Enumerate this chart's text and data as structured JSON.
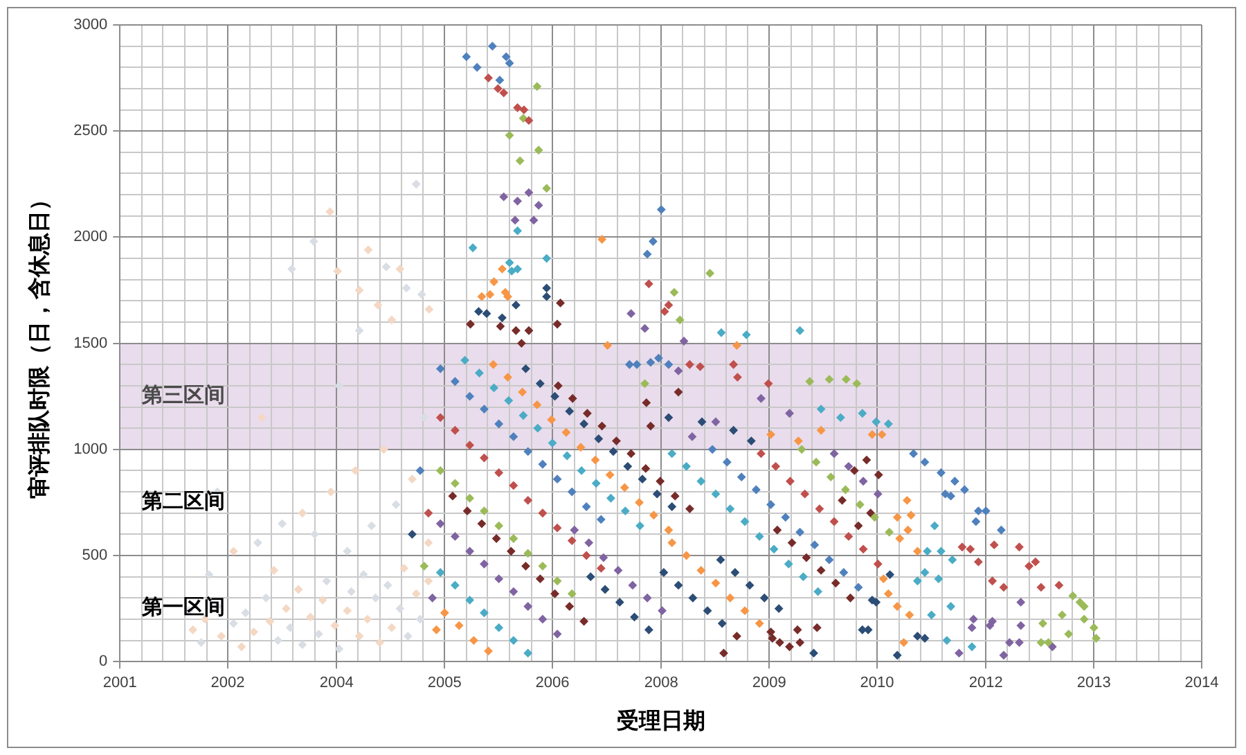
{
  "chart_data": {
    "type": "scatter",
    "xlabel": "受理日期",
    "ylabel": "审评排队时限（日，含休息日）",
    "marker": "diamond",
    "grid": true,
    "xlim": [
      "2001-07-03",
      "2014-10-31"
    ],
    "xticks": [
      {
        "value": "2001-07-03",
        "label": "2001"
      },
      {
        "value": "2001-10-09",
        "label": null
      },
      {
        "value": "2002-01-12",
        "label": null
      },
      {
        "value": "2002-04-21",
        "label": null
      },
      {
        "value": "2002-07-28",
        "label": null
      },
      {
        "value": "2002-10-31",
        "label": "2002"
      },
      {
        "value": "2003-02-07",
        "label": null
      },
      {
        "value": "2003-05-16",
        "label": null
      },
      {
        "value": "2003-08-19",
        "label": null
      },
      {
        "value": "2003-11-26",
        "label": null
      },
      {
        "value": "2004-03-04",
        "label": "2004"
      },
      {
        "value": "2004-06-07",
        "label": null
      },
      {
        "value": "2004-09-14",
        "label": null
      },
      {
        "value": "2004-12-21",
        "label": null
      },
      {
        "value": "2005-03-26",
        "label": null
      },
      {
        "value": "2005-07-03",
        "label": "2005"
      },
      {
        "value": "2005-10-09",
        "label": null
      },
      {
        "value": "2006-01-12",
        "label": null
      },
      {
        "value": "2006-04-21",
        "label": null
      },
      {
        "value": "2006-07-28",
        "label": null
      },
      {
        "value": "2006-10-31",
        "label": "2006"
      },
      {
        "value": "2007-02-07",
        "label": null
      },
      {
        "value": "2007-05-16",
        "label": null
      },
      {
        "value": "2007-08-19",
        "label": null
      },
      {
        "value": "2007-11-26",
        "label": null
      },
      {
        "value": "2008-03-04",
        "label": "2008"
      },
      {
        "value": "2008-06-07",
        "label": null
      },
      {
        "value": "2008-09-14",
        "label": null
      },
      {
        "value": "2008-12-21",
        "label": null
      },
      {
        "value": "2009-03-26",
        "label": null
      },
      {
        "value": "2009-07-03",
        "label": "2009"
      },
      {
        "value": "2009-10-09",
        "label": null
      },
      {
        "value": "2010-01-12",
        "label": null
      },
      {
        "value": "2010-04-21",
        "label": null
      },
      {
        "value": "2010-07-28",
        "label": null
      },
      {
        "value": "2010-10-31",
        "label": "2010"
      },
      {
        "value": "2011-02-07",
        "label": null
      },
      {
        "value": "2011-05-16",
        "label": null
      },
      {
        "value": "2011-08-19",
        "label": null
      },
      {
        "value": "2011-11-26",
        "label": null
      },
      {
        "value": "2012-03-04",
        "label": "2012"
      },
      {
        "value": "2012-06-07",
        "label": null
      },
      {
        "value": "2012-09-14",
        "label": null
      },
      {
        "value": "2012-12-21",
        "label": null
      },
      {
        "value": "2013-03-26",
        "label": null
      },
      {
        "value": "2013-07-03",
        "label": "2013"
      },
      {
        "value": "2013-10-09",
        "label": null
      },
      {
        "value": "2014-01-12",
        "label": null
      },
      {
        "value": "2014-04-21",
        "label": null
      },
      {
        "value": "2014-07-28",
        "label": null
      },
      {
        "value": "2014-10-31",
        "label": "2014"
      }
    ],
    "ylim": [
      0,
      3000
    ],
    "yticks": [
      0,
      {
        "value": 100,
        "label": null
      },
      {
        "value": 200,
        "label": null
      },
      {
        "value": 300,
        "label": null
      },
      {
        "value": 400,
        "label": null
      },
      500,
      {
        "value": 600,
        "label": null
      },
      {
        "value": 700,
        "label": null
      },
      {
        "value": 800,
        "label": null
      },
      {
        "value": 900,
        "label": null
      },
      1000,
      {
        "value": 1100,
        "label": null
      },
      {
        "value": 1200,
        "label": null
      },
      {
        "value": 1300,
        "label": null
      },
      {
        "value": 1400,
        "label": null
      },
      1500,
      {
        "value": 1600,
        "label": null
      },
      {
        "value": 1700,
        "label": null
      },
      {
        "value": 1800,
        "label": null
      },
      {
        "value": 1900,
        "label": null
      },
      2000,
      {
        "value": 2100,
        "label": null
      },
      {
        "value": 2200,
        "label": null
      },
      {
        "value": 2300,
        "label": null
      },
      {
        "value": 2400,
        "label": null
      },
      2500,
      {
        "value": 2600,
        "label": null
      },
      {
        "value": 2700,
        "label": null
      },
      {
        "value": 2800,
        "label": null
      },
      {
        "value": 2900,
        "label": null
      },
      3000
    ],
    "bands": [
      {
        "axis": "y",
        "from": 1000,
        "to": 1500,
        "label": "第三区间",
        "color": "#e9dcec"
      }
    ],
    "annotations": [
      "第二区间",
      "第一区间"
    ],
    "series": [
      {
        "color": "#d9dee5",
        "x": [
          "2002-05-09",
          "2002-07-03",
          "2002-09-14",
          "2002-11-26",
          "2003-01-19",
          "2003-04-21",
          "2003-06-14",
          "2003-08-08",
          "2003-10-02",
          "2003-12-14",
          "2004-01-19",
          "2004-03-15",
          "2004-05-09",
          "2004-07-03",
          "2004-08-26",
          "2004-10-20",
          "2004-12-14",
          "2005-01-19",
          "2005-03-15",
          "2002-08-08",
          "2003-03-15",
          "2003-07-03",
          "2003-11-26",
          "2004-04-21",
          "2004-08-08",
          "2004-11-26",
          "2005-04-02",
          "2002-09-14",
          "2004-03-15",
          "2003-11-22",
          "2003-08-15",
          "2004-10-13",
          "2005-02-25",
          "2005-01-12",
          "2004-06-14",
          "2005-03-22"
        ],
        "values": [
          240,
          90,
          260,
          180,
          230,
          300,
          100,
          160,
          80,
          130,
          380,
          60,
          330,
          410,
          300,
          360,
          250,
          120,
          200,
          410,
          560,
          650,
          600,
          520,
          640,
          740,
          1150,
          800,
          1300,
          1980,
          1850,
          1860,
          2250,
          1760,
          1560,
          1730
        ]
      },
      {
        "color": "#f4d8c4",
        "x": [
          "2002-05-27",
          "2002-07-21",
          "2002-10-02",
          "2003-01-01",
          "2003-02-25",
          "2003-05-09",
          "2003-07-21",
          "2003-09-14",
          "2003-11-07",
          "2004-01-01",
          "2004-02-25",
          "2004-04-21",
          "2004-06-14",
          "2004-07-21",
          "2004-09-14",
          "2004-11-07",
          "2005-01-01",
          "2005-02-25",
          "2005-04-21",
          "2002-11-26",
          "2003-05-27",
          "2003-10-02",
          "2004-02-07",
          "2004-05-27",
          "2004-10-02",
          "2005-02-07",
          "2005-04-21",
          "2003-04-02",
          "2004-02-03",
          "2004-03-08",
          "2004-07-24",
          "2004-12-14",
          "2004-06-14",
          "2004-09-06",
          "2004-11-07",
          "2005-04-24"
        ],
        "values": [
          150,
          200,
          120,
          70,
          140,
          190,
          250,
          340,
          210,
          290,
          170,
          240,
          120,
          200,
          90,
          160,
          440,
          320,
          380,
          520,
          430,
          700,
          800,
          900,
          1000,
          860,
          560,
          1150,
          2120,
          1840,
          1940,
          1850,
          1750,
          1680,
          1610,
          1660
        ]
      },
      {
        "color": "#4f81bd",
        "x": [
          "2005-06-14",
          "2005-08-19",
          "2005-10-24",
          "2005-12-28",
          "2006-03-04",
          "2006-05-09",
          "2006-07-13",
          "2006-09-17",
          "2006-11-22",
          "2007-01-27",
          "2007-04-02",
          "2007-06-07",
          "2008-10-20",
          "2008-12-25",
          "2009-02-28",
          "2009-05-05",
          "2009-07-10",
          "2009-09-14",
          "2009-11-18",
          "2010-01-23",
          "2010-03-30",
          "2010-06-03",
          "2010-08-08",
          "2005-10-09",
          "2005-11-26",
          "2006-02-03",
          "2006-04-06",
          "2006-04-21",
          "2006-03-08",
          "2008-03-04",
          "2008-01-27",
          "2008-01-01",
          "2007-10-13",
          "2007-11-15",
          "2008-01-16",
          "2008-02-21",
          "2008-04-06",
          "2011-04-13",
          "2011-06-03",
          "2011-08-15",
          "2011-10-16",
          "2011-11-29",
          "2011-09-03",
          "2011-09-28",
          "2012-01-30",
          "2012-03-04",
          "2012-01-19",
          "2012-05-12",
          "2005-03-15"
        ],
        "values": [
          1380,
          1320,
          1250,
          1190,
          1120,
          1060,
          990,
          930,
          860,
          800,
          730,
          670,
          1000,
          940,
          870,
          810,
          740,
          680,
          610,
          550,
          480,
          420,
          350,
          2850,
          2800,
          2900,
          2850,
          2820,
          2740,
          2130,
          1980,
          1920,
          1400,
          1400,
          1410,
          1430,
          1400,
          980,
          940,
          890,
          850,
          810,
          790,
          780,
          710,
          710,
          660,
          620,
          900
        ]
      },
      {
        "color": "#c0504d",
        "x": [
          "2005-06-14",
          "2005-08-19",
          "2005-10-24",
          "2005-12-28",
          "2006-03-04",
          "2006-05-09",
          "2006-07-13",
          "2006-09-17",
          "2006-11-22",
          "2007-01-27",
          "2007-04-02",
          "2007-06-07",
          "2009-05-27",
          "2009-08-01",
          "2009-10-05",
          "2009-12-10",
          "2010-02-14",
          "2010-04-21",
          "2010-06-25",
          "2010-08-30",
          "2010-11-04",
          "2006-01-16",
          "2006-02-28",
          "2006-03-26",
          "2006-05-27",
          "2006-06-25",
          "2006-07-17",
          "2008-01-08",
          "2008-04-06",
          "2008-03-19",
          "2008-07-10",
          "2008-08-26",
          "2009-01-23",
          "2009-02-10",
          "2009-06-29",
          "2011-11-18",
          "2011-12-25",
          "2012-04-10",
          "2012-08-01",
          "2012-10-13",
          "2012-01-30",
          "2012-04-02",
          "2012-05-23",
          "2012-09-14",
          "2012-11-07",
          "2013-01-27",
          "2005-04-21"
        ],
        "values": [
          1150,
          1090,
          1020,
          960,
          890,
          830,
          760,
          700,
          630,
          570,
          500,
          440,
          980,
          920,
          850,
          790,
          720,
          660,
          590,
          530,
          460,
          2750,
          2700,
          2680,
          2610,
          2600,
          2550,
          1780,
          1680,
          1650,
          1400,
          1390,
          1400,
          1340,
          1310,
          540,
          530,
          550,
          540,
          470,
          470,
          380,
          350,
          450,
          350,
          360,
          700
        ]
      },
      {
        "color": "#9bbb59",
        "x": [
          "2005-06-14",
          "2005-08-19",
          "2005-10-24",
          "2005-12-28",
          "2006-03-04",
          "2006-05-09",
          "2006-07-13",
          "2006-09-17",
          "2006-11-22",
          "2007-01-27",
          "2009-11-26",
          "2010-01-30",
          "2010-04-06",
          "2010-06-11",
          "2010-08-15",
          "2010-10-20",
          "2010-12-25",
          "2006-06-22",
          "2006-08-23",
          "2006-04-21",
          "2006-08-30",
          "2006-06-07",
          "2006-10-05",
          "2008-05-27",
          "2008-10-09",
          "2008-05-01",
          "2010-01-01",
          "2010-03-30",
          "2010-06-14",
          "2010-08-01",
          "2007-12-21",
          "2013-03-30",
          "2013-05-01",
          "2013-05-20",
          "2013-07-03",
          "2013-07-13",
          "2013-05-20",
          "2013-03-11",
          "2013-02-10",
          "2012-11-15",
          "2012-11-07",
          "2012-12-10",
          "2005-04-02"
        ],
        "values": [
          900,
          840,
          770,
          710,
          640,
          580,
          510,
          450,
          380,
          320,
          1000,
          940,
          870,
          810,
          740,
          680,
          610,
          2560,
          2710,
          2480,
          2410,
          2360,
          2230,
          1610,
          1830,
          1740,
          1320,
          1330,
          1330,
          1310,
          1310,
          310,
          280,
          260,
          160,
          110,
          200,
          130,
          220,
          180,
          90,
          90,
          450
        ]
      },
      {
        "color": "#8064a2",
        "x": [
          "2005-06-14",
          "2005-08-19",
          "2005-10-24",
          "2005-12-28",
          "2006-03-04",
          "2006-05-09",
          "2006-07-13",
          "2006-09-17",
          "2006-11-22",
          "2007-02-07",
          "2007-04-13",
          "2007-06-18",
          "2007-08-23",
          "2007-10-27",
          "2008-01-01",
          "2008-03-08",
          "2010-04-21",
          "2010-06-25",
          "2010-08-30",
          "2010-11-04",
          "2006-03-26",
          "2006-05-27",
          "2006-07-17",
          "2006-08-30",
          "2006-05-16",
          "2006-08-08",
          "2008-06-14",
          "2007-10-20",
          "2007-12-21",
          "2008-05-20",
          "2008-07-21",
          "2008-11-04",
          "2009-05-27",
          "2009-10-02",
          "2012-12-28",
          "2012-08-08",
          "2012-08-08",
          "2012-08-01",
          "2012-05-23",
          "2012-06-18",
          "2012-03-22",
          "2012-04-02",
          "2012-01-08",
          "2012-01-01",
          "2011-11-04",
          "2005-05-09"
        ],
        "values": [
          650,
          590,
          520,
          460,
          390,
          330,
          260,
          200,
          130,
          620,
          560,
          490,
          430,
          360,
          300,
          240,
          980,
          920,
          850,
          790,
          2190,
          2170,
          2210,
          2150,
          2080,
          2080,
          1510,
          1640,
          1570,
          1370,
          1060,
          1130,
          1240,
          1170,
          70,
          280,
          170,
          90,
          30,
          90,
          170,
          190,
          200,
          160,
          40,
          300
        ]
      },
      {
        "color": "#4bacc6",
        "x": [
          "2005-06-14",
          "2005-08-19",
          "2005-10-24",
          "2005-12-28",
          "2006-03-04",
          "2006-05-09",
          "2006-07-13",
          "2005-10-02",
          "2005-12-06",
          "2006-02-10",
          "2006-04-17",
          "2006-06-22",
          "2006-08-26",
          "2006-10-31",
          "2007-01-05",
          "2007-03-11",
          "2007-05-16",
          "2007-07-21",
          "2007-09-24",
          "2007-11-29",
          "2008-04-21",
          "2008-06-25",
          "2008-08-30",
          "2008-11-04",
          "2009-01-08",
          "2009-03-15",
          "2009-05-20",
          "2009-07-24",
          "2009-09-28",
          "2009-12-03",
          "2010-02-07",
          "2006-05-27",
          "2005-11-07",
          "2006-04-21",
          "2006-05-01",
          "2006-05-27",
          "2006-10-05",
          "2008-11-29",
          "2009-03-22",
          "2009-11-18",
          "2010-02-21",
          "2010-05-20",
          "2010-08-26",
          "2010-10-27",
          "2010-12-21",
          "2011-09-10",
          "2012-01-01",
          "2011-09-28",
          "2011-07-03",
          "2011-05-01",
          "2011-06-03",
          "2011-08-04",
          "2011-06-14",
          "2011-07-17",
          "2011-08-15",
          "2011-10-05"
        ],
        "values": [
          420,
          360,
          290,
          230,
          160,
          100,
          40,
          1420,
          1360,
          1290,
          1230,
          1160,
          1100,
          1030,
          970,
          900,
          840,
          770,
          710,
          640,
          980,
          920,
          850,
          790,
          720,
          660,
          590,
          530,
          460,
          400,
          330,
          2030,
          1950,
          1880,
          1840,
          1850,
          1900,
          1550,
          1540,
          1560,
          1190,
          1150,
          1170,
          1130,
          1120,
          100,
          70,
          260,
          220,
          380,
          420,
          390,
          520,
          640,
          520,
          480
        ]
      },
      {
        "color": "#f79646",
        "x": [
          "2005-07-03",
          "2005-09-06",
          "2005-11-11",
          "2006-01-16",
          "2006-02-07",
          "2006-04-13",
          "2006-06-18",
          "2006-08-23",
          "2006-10-27",
          "2007-01-01",
          "2007-03-08",
          "2007-05-12",
          "2007-07-17",
          "2007-09-21",
          "2007-11-26",
          "2008-01-30",
          "2008-04-06",
          "2008-04-21",
          "2008-06-25",
          "2008-08-30",
          "2008-11-04",
          "2009-01-08",
          "2009-03-15",
          "2009-05-20",
          "2006-02-10",
          "2006-04-02",
          "2006-03-19",
          "2005-12-17",
          "2006-01-23",
          "2006-04-13",
          "2009-02-07",
          "2007-06-11",
          "2007-07-06",
          "2010-10-09",
          "2010-11-22",
          "2010-02-21",
          "2009-11-11",
          "2009-07-10",
          "2011-05-01",
          "2011-02-10",
          "2011-03-19",
          "2011-04-02",
          "2011-03-15",
          "2011-01-30",
          "2010-11-29",
          "2010-12-21",
          "2011-01-30",
          "2011-03-26",
          "2011-02-28",
          "2005-05-27"
        ],
        "values": [
          230,
          170,
          100,
          50,
          1400,
          1340,
          1270,
          1210,
          1140,
          1080,
          1010,
          950,
          880,
          820,
          750,
          690,
          620,
          560,
          500,
          430,
          370,
          300,
          240,
          180,
          1790,
          1740,
          1850,
          1720,
          1730,
          1720,
          1490,
          1990,
          1490,
          1070,
          1070,
          1090,
          1040,
          1070,
          520,
          580,
          620,
          690,
          760,
          680,
          390,
          320,
          260,
          220,
          90,
          150
        ]
      },
      {
        "color": "#2c4d75",
        "x": [
          "2006-07-03",
          "2006-09-06",
          "2006-11-11",
          "2007-01-16",
          "2007-03-22",
          "2007-05-27",
          "2007-08-01",
          "2007-10-05",
          "2007-12-10",
          "2008-02-14",
          "2008-04-21",
          "2007-04-21",
          "2007-06-25",
          "2007-08-30",
          "2007-11-04",
          "2008-01-08",
          "2008-03-15",
          "2008-05-20",
          "2008-07-24",
          "2008-09-28",
          "2008-12-03",
          "2008-11-26",
          "2009-01-30",
          "2009-04-06",
          "2009-06-11",
          "2009-08-15",
          "2006-10-05",
          "2006-10-05",
          "2006-05-20",
          "2005-12-03",
          "2006-01-08",
          "2006-03-19",
          "2009-04-13",
          "2009-01-23",
          "2008-09-03",
          "2008-04-06",
          "2011-01-30",
          "2011-05-01",
          "2011-06-03",
          "2010-12-28",
          "2010-10-09",
          "2010-10-27",
          "2010-08-26",
          "2010-09-21",
          "2010-01-19",
          "2005-02-07"
        ],
        "values": [
          1380,
          1310,
          1250,
          1180,
          1120,
          1050,
          990,
          920,
          860,
          790,
          730,
          400,
          340,
          280,
          210,
          150,
          420,
          360,
          300,
          240,
          180,
          480,
          420,
          360,
          300,
          250,
          1760,
          1720,
          1680,
          1650,
          1640,
          1620,
          1040,
          1090,
          1130,
          1150,
          30,
          120,
          110,
          410,
          290,
          280,
          150,
          150,
          40,
          600
        ]
      },
      {
        "color": "#772c2a",
        "x": [
          "2006-11-26",
          "2007-01-30",
          "2007-04-06",
          "2007-06-11",
          "2007-08-15",
          "2007-10-20",
          "2007-12-25",
          "2008-02-28",
          "2008-05-05",
          "2008-07-10",
          "2005-08-08",
          "2005-10-13",
          "2005-12-17",
          "2006-02-21",
          "2006-04-28",
          "2006-07-03",
          "2006-09-06",
          "2006-11-11",
          "2007-01-16",
          "2007-03-22",
          "2009-08-08",
          "2009-10-13",
          "2009-12-17",
          "2010-02-21",
          "2010-04-28",
          "2010-07-03",
          "2010-07-21",
          "2010-09-14",
          "2010-10-02",
          "2010-08-08",
          "2010-11-07",
          "2010-05-27",
          "2006-12-06",
          "2006-11-22",
          "2006-05-20",
          "2006-07-17",
          "2006-03-11",
          "2005-10-27",
          "2006-06-14",
          "2008-01-16",
          "2008-05-20",
          "2007-12-28",
          "2009-11-18",
          "2009-10-02",
          "2009-08-19",
          "2009-07-17",
          "2009-07-10",
          "2009-11-07",
          "2010-02-03",
          "2008-12-10",
          "2009-02-07"
        ],
        "values": [
          1300,
          1240,
          1170,
          1110,
          1040,
          980,
          910,
          850,
          780,
          720,
          780,
          710,
          650,
          580,
          520,
          450,
          390,
          320,
          260,
          190,
          620,
          560,
          490,
          430,
          370,
          300,
          900,
          950,
          700,
          640,
          880,
          760,
          1690,
          1590,
          1560,
          1560,
          1580,
          1590,
          1500,
          1110,
          1270,
          1220,
          90,
          70,
          90,
          110,
          140,
          150,
          160,
          40,
          120
        ]
      }
    ]
  }
}
